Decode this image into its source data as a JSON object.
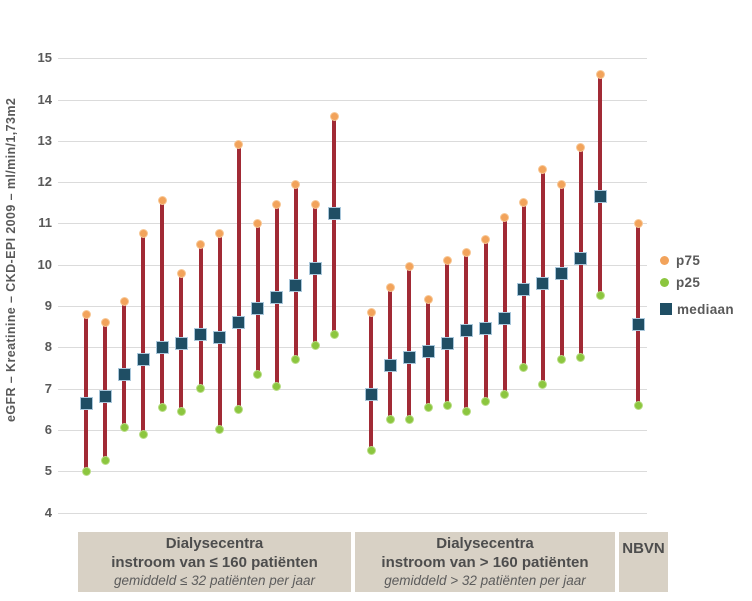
{
  "y_axis": {
    "title": "eGFR – Kreatinine – CKD-EPI 2009 – ml/min/1,73m2"
  },
  "legend": {
    "items": [
      {
        "id": "p75",
        "label": "p75",
        "color": "#F2A35B",
        "marker": "circle"
      },
      {
        "id": "p25",
        "label": "p25",
        "color": "#8CC63F",
        "marker": "circle"
      },
      {
        "id": "mediaan",
        "label": "mediaan",
        "color": "#1F4E64",
        "marker": "square"
      }
    ]
  },
  "x_groups": [
    {
      "line1": "Dialysecentra",
      "line2": "instroom van ≤ 160 patiënten",
      "line3": "gemiddeld ≤ 32 patiënten per jaar"
    },
    {
      "line1": "Dialysecentra",
      "line2": "instroom van > 160 patiënten",
      "line3": "gemiddeld > 32 patiënten per jaar"
    },
    {
      "line1": "NBVN"
    }
  ],
  "chart_data": {
    "type": "bar",
    "subtype": "range-dot-plot (p25–p75 range with median)",
    "title": "",
    "xlabel": "",
    "ylabel": "eGFR – Kreatinine – CKD-EPI 2009 – ml/min/1,73m2",
    "ylim": [
      4,
      15
    ],
    "yticks": [
      15,
      14,
      13,
      12,
      11,
      10,
      9,
      8,
      7,
      6,
      5,
      4
    ],
    "grid": true,
    "legend_position": "right",
    "series_labels": [
      "p75",
      "p25",
      "mediaan"
    ],
    "colors": {
      "p75": "#F2A35B",
      "p25": "#8CC63F",
      "mediaan": "#1F4E64",
      "range_line": "#A12A35"
    },
    "groups": [
      {
        "label": "Dialysecentra instroom van ≤ 160 patiënten (gemiddeld ≤ 32 patiënten per jaar)",
        "bars": [
          {
            "p75": 8.8,
            "mediaan": 6.65,
            "p25": 5.0
          },
          {
            "p75": 8.6,
            "mediaan": 6.8,
            "p25": 5.25
          },
          {
            "p75": 9.1,
            "mediaan": 7.35,
            "p25": 6.05
          },
          {
            "p75": 10.75,
            "mediaan": 7.7,
            "p25": 5.9
          },
          {
            "p75": 11.55,
            "mediaan": 8.0,
            "p25": 6.55
          },
          {
            "p75": 9.8,
            "mediaan": 8.1,
            "p25": 6.45
          },
          {
            "p75": 10.5,
            "mediaan": 8.3,
            "p25": 7.0
          },
          {
            "p75": 10.75,
            "mediaan": 8.25,
            "p25": 6.0
          },
          {
            "p75": 12.9,
            "mediaan": 8.6,
            "p25": 6.5
          },
          {
            "p75": 11.0,
            "mediaan": 8.95,
            "p25": 7.35
          },
          {
            "p75": 11.45,
            "mediaan": 9.2,
            "p25": 7.05
          },
          {
            "p75": 11.95,
            "mediaan": 9.5,
            "p25": 7.7
          },
          {
            "p75": 11.45,
            "mediaan": 9.9,
            "p25": 8.05
          },
          {
            "p75": 13.6,
            "mediaan": 11.25,
            "p25": 8.3
          }
        ]
      },
      {
        "label": "Dialysecentra instroom van > 160 patiënten (gemiddeld > 32 patiënten per jaar)",
        "bars": [
          {
            "p75": 8.85,
            "mediaan": 6.85,
            "p25": 5.5
          },
          {
            "p75": 9.45,
            "mediaan": 7.55,
            "p25": 6.25
          },
          {
            "p75": 9.95,
            "mediaan": 7.75,
            "p25": 6.25
          },
          {
            "p75": 9.15,
            "mediaan": 7.9,
            "p25": 6.55
          },
          {
            "p75": 10.1,
            "mediaan": 8.1,
            "p25": 6.6
          },
          {
            "p75": 10.3,
            "mediaan": 8.4,
            "p25": 6.45
          },
          {
            "p75": 10.6,
            "mediaan": 8.45,
            "p25": 6.7
          },
          {
            "p75": 11.15,
            "mediaan": 8.7,
            "p25": 6.85
          },
          {
            "p75": 11.5,
            "mediaan": 9.4,
            "p25": 7.5
          },
          {
            "p75": 12.3,
            "mediaan": 9.55,
            "p25": 7.1
          },
          {
            "p75": 11.95,
            "mediaan": 9.8,
            "p25": 7.7
          },
          {
            "p75": 12.85,
            "mediaan": 10.15,
            "p25": 7.75
          },
          {
            "p75": 14.6,
            "mediaan": 11.65,
            "p25": 9.25
          }
        ]
      },
      {
        "label": "NBVN",
        "bars": [
          {
            "p75": 11.0,
            "mediaan": 8.55,
            "p25": 6.6
          }
        ]
      }
    ]
  }
}
